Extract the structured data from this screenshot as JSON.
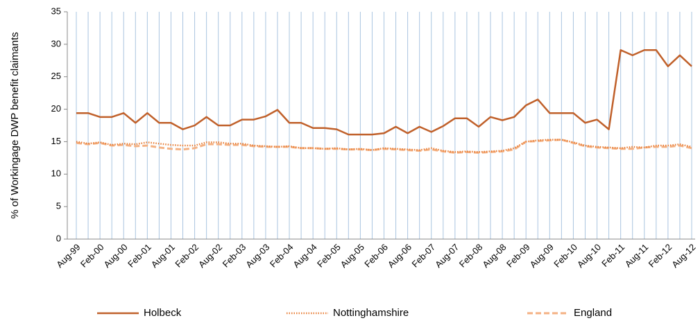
{
  "chart_data": {
    "type": "line",
    "y_label": "% of Workingage DWP benefit claimants",
    "categories": [
      "Aug-99",
      null,
      "Feb-00",
      null,
      "Aug-00",
      null,
      "Feb-01",
      null,
      "Aug-01",
      null,
      "Feb-02",
      null,
      "Aug-02",
      null,
      "Feb-03",
      null,
      "Aug-03",
      null,
      "Feb-04",
      null,
      "Aug-04",
      null,
      "Feb-05",
      null,
      "Aug-05",
      null,
      "Feb-06",
      null,
      "Aug-06",
      null,
      "Feb-07",
      null,
      "Aug-07",
      null,
      "Feb-08",
      null,
      "Aug-08",
      null,
      "Feb-09",
      null,
      "Aug-09",
      null,
      "Feb-10",
      null,
      "Aug-10",
      null,
      "Feb-11",
      null,
      "Aug-11",
      null,
      "Feb-12",
      null,
      "Aug-12"
    ],
    "series": [
      {
        "name": "Holbeck",
        "color": "#c0602a",
        "style": "solid",
        "values": [
          19.4,
          19.4,
          18.8,
          18.8,
          19.4,
          17.9,
          19.4,
          17.9,
          17.9,
          16.9,
          17.5,
          18.8,
          17.5,
          17.5,
          18.4,
          18.4,
          18.9,
          19.9,
          17.9,
          17.9,
          17.1,
          17.1,
          16.9,
          16.1,
          16.1,
          16.1,
          16.3,
          17.3,
          16.3,
          17.3,
          16.5,
          17.4,
          18.6,
          18.6,
          17.3,
          18.8,
          18.3,
          18.8,
          20.6,
          21.5,
          19.4,
          19.4,
          19.4,
          17.9,
          18.4,
          16.9,
          29.1,
          28.3,
          29.1,
          29.1,
          26.6,
          28.3,
          26.6
        ]
      },
      {
        "name": "Nottinghamshire",
        "color": "#e8803a",
        "style": "dotted",
        "values": [
          15.0,
          14.7,
          14.9,
          14.5,
          14.7,
          14.6,
          14.9,
          14.7,
          14.5,
          14.4,
          14.4,
          14.9,
          14.9,
          14.7,
          14.7,
          14.4,
          14.3,
          14.2,
          14.3,
          14.0,
          14.0,
          13.9,
          14.0,
          13.8,
          13.9,
          13.7,
          14.0,
          13.9,
          13.8,
          13.7,
          14.0,
          13.6,
          13.4,
          13.5,
          13.4,
          13.5,
          13.6,
          14.0,
          15.0,
          15.2,
          15.3,
          15.3,
          14.9,
          14.4,
          14.2,
          14.1,
          14.0,
          14.2,
          14.1,
          14.4,
          14.4,
          14.6,
          14.2
        ]
      },
      {
        "name": "England",
        "color": "#f4b183",
        "style": "dashed",
        "values": [
          14.8,
          14.6,
          14.8,
          14.4,
          14.5,
          14.3,
          14.4,
          14.1,
          13.9,
          13.8,
          14.0,
          14.6,
          14.6,
          14.5,
          14.5,
          14.3,
          14.2,
          14.2,
          14.2,
          14.0,
          14.0,
          13.9,
          13.9,
          13.8,
          13.8,
          13.7,
          13.9,
          13.8,
          13.7,
          13.6,
          13.8,
          13.5,
          13.3,
          13.4,
          13.3,
          13.4,
          13.5,
          13.8,
          15.0,
          15.1,
          15.2,
          15.3,
          14.8,
          14.3,
          14.1,
          14.0,
          13.9,
          13.9,
          14.1,
          14.2,
          14.2,
          14.4,
          14.0
        ]
      }
    ],
    "ylim": [
      0,
      35
    ],
    "yticks": [
      0,
      5,
      10,
      15,
      20,
      25,
      30,
      35
    ],
    "grid": "x",
    "legend": "bottom"
  }
}
